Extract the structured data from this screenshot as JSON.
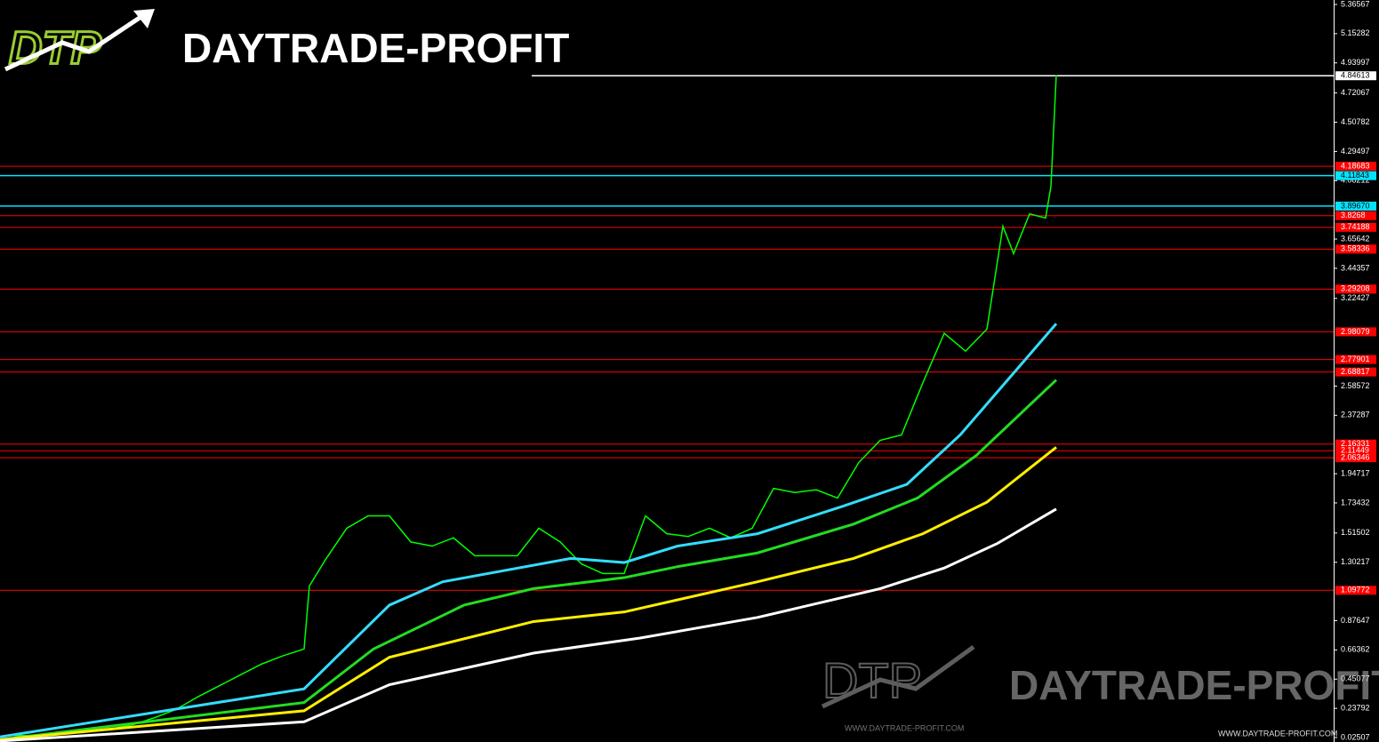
{
  "branding": {
    "logo_letters": "DTP",
    "name": "DAYTRADE-PROFIT",
    "url": "WWW.DAYTRADE-PROFIT.COM"
  },
  "chart_data": {
    "type": "line",
    "xlim": [
      0,
      250
    ],
    "ylim": [
      -0.0073,
      5.398
    ],
    "yticks": [
      5.36567,
      5.15282,
      4.93997,
      4.72067,
      4.50782,
      4.29497,
      4.08212,
      3.65642,
      3.44357,
      3.22427,
      2.58572,
      2.37287,
      1.94717,
      1.73432,
      1.51502,
      1.30217,
      0.87647,
      0.66362,
      0.45077,
      0.23792,
      0.02507
    ],
    "series": [
      {
        "color": "#00ff00",
        "x": [
          1,
          5,
          9,
          13,
          17,
          21,
          25,
          29,
          33,
          37,
          41,
          45,
          49,
          53,
          57,
          58,
          61,
          65,
          69,
          73,
          77,
          81,
          85,
          89,
          93,
          97,
          101,
          105,
          109,
          113,
          117,
          121,
          125,
          129,
          133,
          137,
          141,
          145,
          149,
          153,
          157,
          161,
          165,
          169,
          173,
          177,
          181,
          185,
          188,
          190,
          193,
          196,
          197,
          198
        ],
        "values": [
          0.04,
          0.04,
          0.05,
          0.06,
          0.07,
          0.09,
          0.12,
          0.17,
          0.23,
          0.32,
          0.4,
          0.48,
          0.56,
          0.62,
          0.67,
          1.13,
          1.32,
          1.55,
          1.64,
          1.64,
          1.45,
          1.42,
          1.48,
          1.35,
          1.35,
          1.35,
          1.55,
          1.45,
          1.29,
          1.22,
          1.22,
          1.64,
          1.51,
          1.49,
          1.55,
          1.48,
          1.55,
          1.84,
          1.81,
          1.83,
          1.77,
          2.03,
          2.19,
          2.23,
          2.61,
          2.97,
          2.84,
          3.0,
          3.75,
          3.55,
          3.84,
          3.81,
          4.04,
          4.85
        ]
      },
      {
        "color": "#33ddff",
        "x": [
          0,
          57,
          73,
          83,
          107,
          117,
          127,
          142,
          158,
          170,
          180,
          190,
          198
        ],
        "values": [
          0.03,
          0.38,
          0.99,
          1.16,
          1.33,
          1.3,
          1.42,
          1.51,
          1.71,
          1.87,
          2.23,
          2.68,
          3.04
        ]
      },
      {
        "color": "#22dd22",
        "x": [
          0,
          57,
          70,
          87,
          100,
          117,
          127,
          142,
          160,
          172,
          183,
          198
        ],
        "values": [
          0.01,
          0.28,
          0.67,
          0.99,
          1.11,
          1.19,
          1.27,
          1.37,
          1.58,
          1.77,
          2.08,
          2.63
        ]
      },
      {
        "color": "#ffee00",
        "x": [
          0,
          57,
          73,
          100,
          117,
          142,
          160,
          173,
          185,
          198
        ],
        "values": [
          0.01,
          0.22,
          0.61,
          0.87,
          0.94,
          1.16,
          1.33,
          1.51,
          1.74,
          2.14
        ]
      },
      {
        "color": "#ffffff",
        "x": [
          0,
          57,
          73,
          100,
          120,
          142,
          165,
          177,
          187,
          198
        ],
        "values": [
          0.0,
          0.14,
          0.41,
          0.64,
          0.75,
          0.9,
          1.11,
          1.26,
          1.44,
          1.69
        ]
      }
    ],
    "levels": [
      {
        "value": 4.84613,
        "color": "#ffffff"
      },
      {
        "value": 4.18683,
        "color": "#ff0000"
      },
      {
        "value": 4.11843,
        "color": "#00e5ff"
      },
      {
        "value": {
          "value": 3.8967,
          "label": "3.89670"
        },
        "color": "#00e5ff"
      },
      {
        "value": 3.8268,
        "color": "#ff0000"
      },
      {
        "value": 3.74188,
        "color": "#ff0000"
      },
      {
        "value": 3.58336,
        "color": "#ff0000"
      },
      {
        "value": 3.29208,
        "color": "#ff0000"
      },
      {
        "value": 2.98079,
        "color": "#ff0000"
      },
      {
        "value": 2.77901,
        "color": "#ff0000"
      },
      {
        "value": 2.68817,
        "color": "#ff0000"
      },
      {
        "value": 2.16331,
        "color": "#ff0000"
      },
      {
        "value": 2.11449,
        "color": "#ff0000"
      },
      {
        "value": 2.06346,
        "color": "#ff0000"
      },
      {
        "value": 1.09772,
        "color": "#ff0000"
      }
    ]
  }
}
